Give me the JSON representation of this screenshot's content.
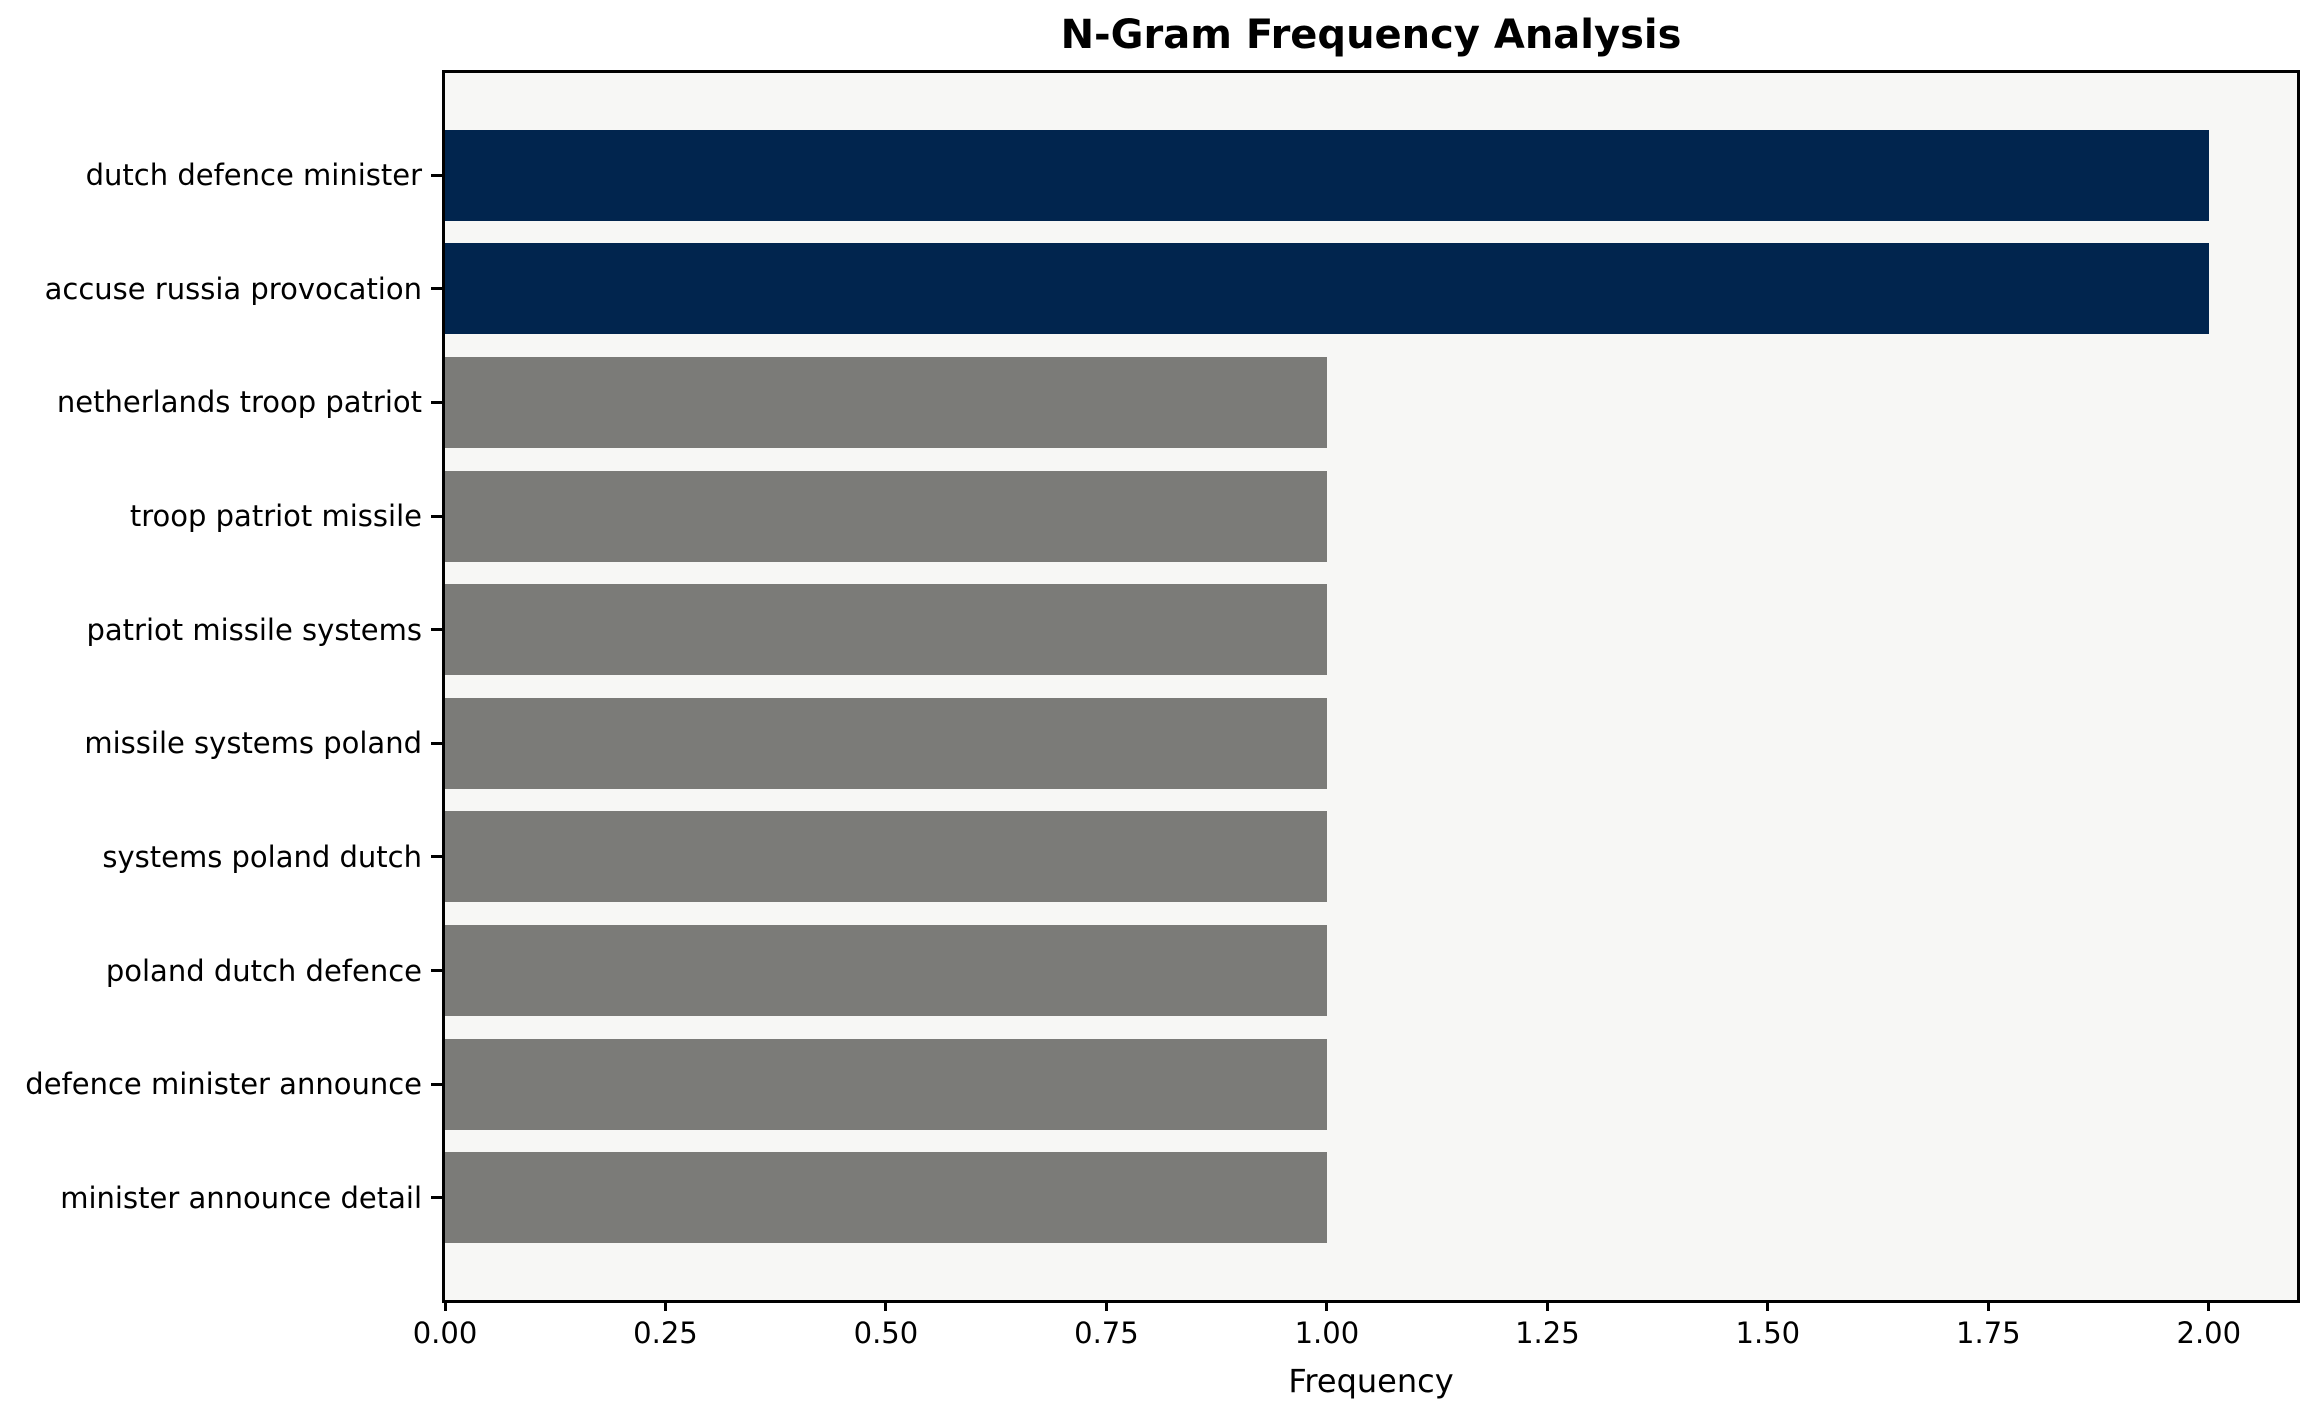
{
  "chart_data": {
    "type": "bar",
    "orientation": "horizontal",
    "title": "N-Gram Frequency Analysis",
    "xlabel": "Frequency",
    "ylabel": "",
    "categories": [
      "dutch defence minister",
      "accuse russia provocation",
      "netherlands troop patriot",
      "troop patriot missile",
      "patriot missile systems",
      "missile systems poland",
      "systems poland dutch",
      "poland dutch defence",
      "defence minister announce",
      "minister announce detail"
    ],
    "values": [
      2,
      2,
      1,
      1,
      1,
      1,
      1,
      1,
      1,
      1
    ],
    "bar_colors": [
      "#01254e",
      "#01254e",
      "#7b7b78",
      "#7b7b78",
      "#7b7b78",
      "#7b7b78",
      "#7b7b78",
      "#7b7b78",
      "#7b7b78",
      "#7b7b78"
    ],
    "xticks": [
      "0.00",
      "0.25",
      "0.50",
      "0.75",
      "1.00",
      "1.25",
      "1.50",
      "1.75",
      "2.00"
    ],
    "xlim": [
      0,
      2.1
    ],
    "grid": false,
    "legend": null,
    "colors": {
      "highlight": "#01254e",
      "default": "#7b7b78",
      "plot_background": "#f7f7f5",
      "figure_background": "#ffffff",
      "axis": "#000000"
    }
  }
}
